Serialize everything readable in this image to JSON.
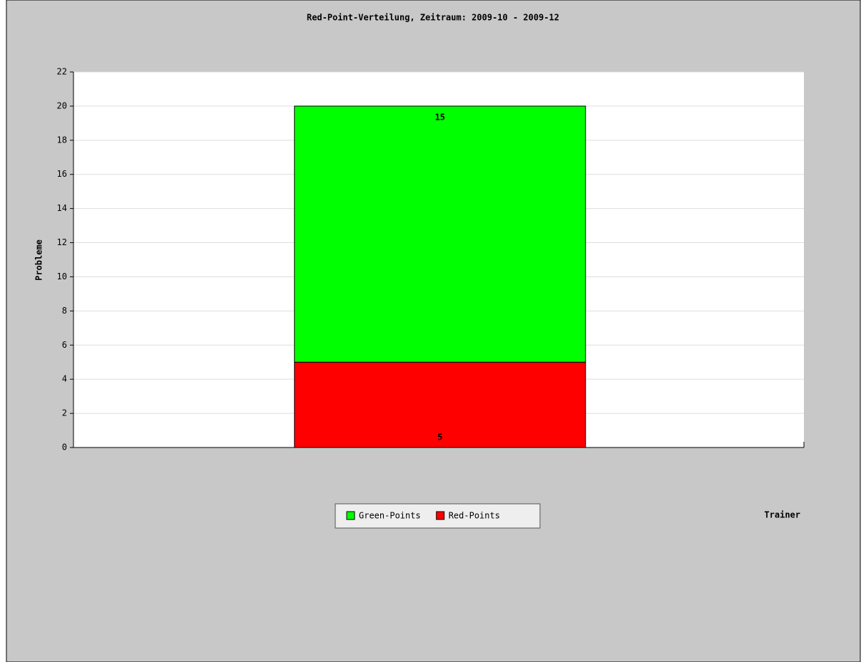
{
  "chart_data": {
    "type": "stacked_bar",
    "title": "Red-Point-Verteilung, Zeitraum: 2009-10 - 2009-12",
    "y_label": "Probleme",
    "x_label": "Trainer",
    "categories": [
      null
    ],
    "series": [
      {
        "name": "Green-Points",
        "color": "#00ff00",
        "values": [
          15
        ]
      },
      {
        "name": "Red-Points",
        "color": "#ff0000",
        "values": [
          5
        ]
      }
    ],
    "ylim": [
      0,
      22
    ],
    "yticks": [
      0,
      2,
      4,
      6,
      8,
      10,
      12,
      14,
      16,
      18,
      20,
      22
    ],
    "grid": true,
    "legend": "bottom"
  }
}
